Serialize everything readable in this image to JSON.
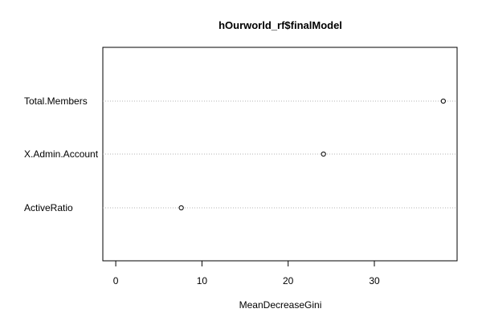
{
  "chart_data": {
    "type": "scatter",
    "title": "hOurworld_rf$finalModel",
    "xlabel": "MeanDecreaseGini",
    "ylabel": "",
    "xlim": [
      -1.5,
      39.6
    ],
    "xticks": [
      0,
      10,
      20,
      30
    ],
    "categories": [
      "Total.Members",
      "X.Admin.Account",
      "ActiveRatio"
    ],
    "values": [
      38.0,
      24.1,
      7.6
    ],
    "grid": "dotted horizontal guide lines",
    "legend": "none",
    "colors": {
      "point_stroke": "#000000",
      "guide_line": "#b3b3b3",
      "axis": "#000000"
    }
  }
}
